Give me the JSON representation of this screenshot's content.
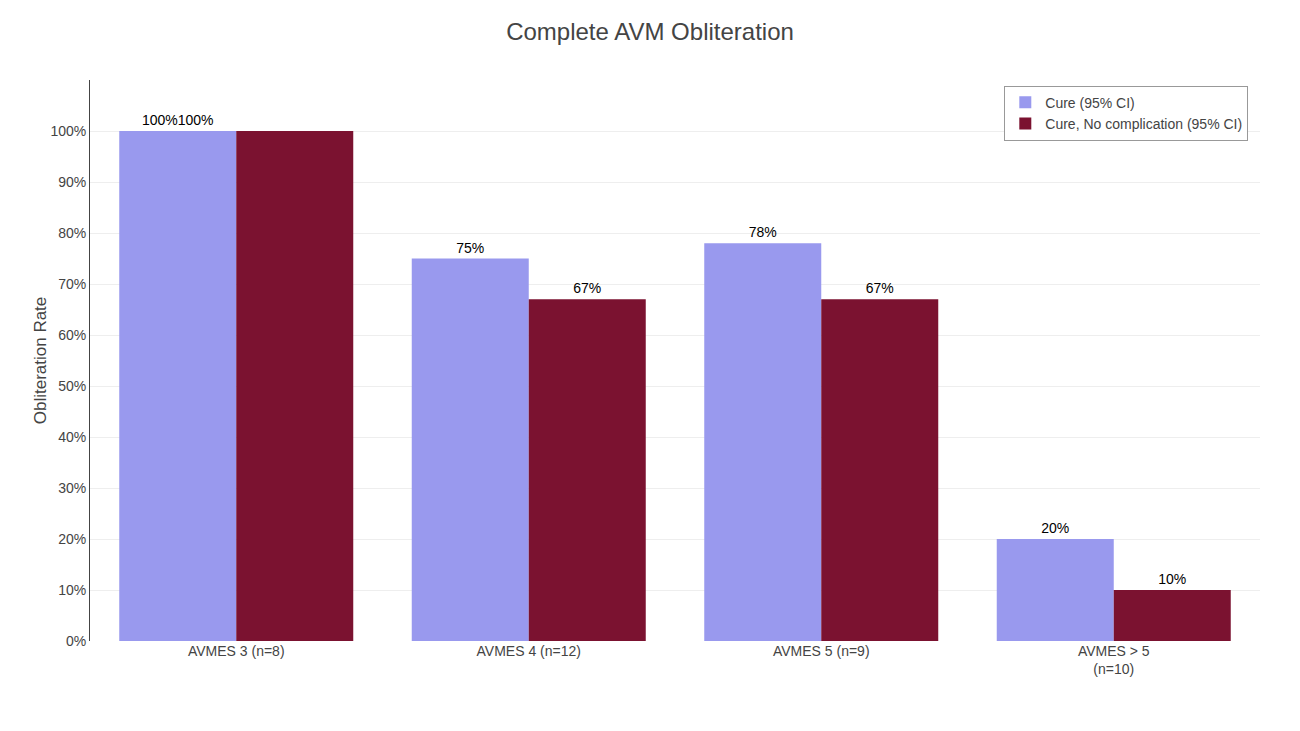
{
  "chart_data": {
    "type": "bar",
    "title": "Complete AVM Obliteration",
    "ylabel": "Obliteration Rate",
    "categories": [
      "AVMES 3 (n=8)",
      "AVMES 4 (n=12)",
      "AVMES 5 (n=9)",
      "AVMES > 5\n(n=10)"
    ],
    "series": [
      {
        "name": "Cure (95% CI)",
        "color": "#9999ee",
        "values": [
          100,
          75,
          78,
          20
        ],
        "value_labels": [
          "100%100%",
          "75%",
          "78%",
          "20%"
        ]
      },
      {
        "name": "Cure, No complication (95% CI)",
        "color": "#7b1230",
        "values": [
          100,
          67,
          67,
          10
        ],
        "value_labels": [
          null,
          "67%",
          "67%",
          "10%"
        ]
      }
    ],
    "ylim": [
      0,
      110
    ],
    "yticks": [
      {
        "value": 0,
        "label": "0%"
      },
      {
        "value": 10,
        "label": "10%"
      },
      {
        "value": 20,
        "label": "20%"
      },
      {
        "value": 30,
        "label": "30%"
      },
      {
        "value": 40,
        "label": "40%"
      },
      {
        "value": 50,
        "label": "50%"
      },
      {
        "value": 60,
        "label": "60%"
      },
      {
        "value": 70,
        "label": "70%"
      },
      {
        "value": 80,
        "label": "80%"
      },
      {
        "value": 90,
        "label": "90%"
      },
      {
        "value": 100,
        "label": "100%"
      }
    ],
    "grid": true,
    "legend": "upper right",
    "data_labels": true
  }
}
